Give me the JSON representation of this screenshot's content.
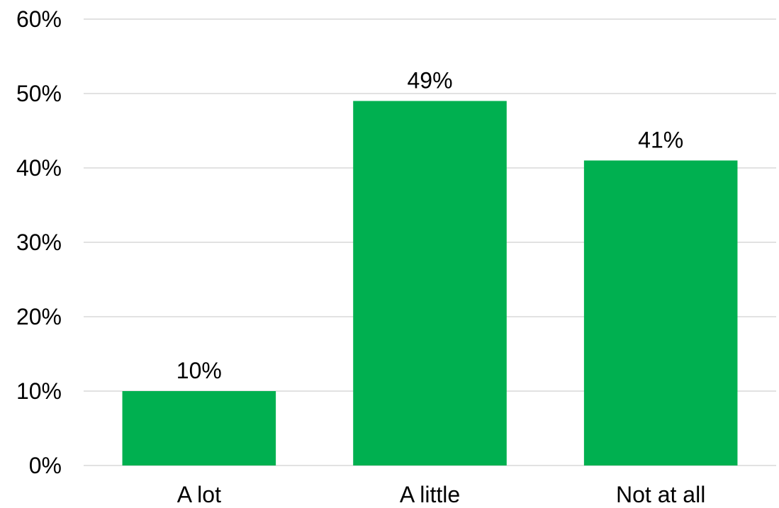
{
  "chart_data": {
    "type": "bar",
    "title": "",
    "xlabel": "",
    "ylabel": "",
    "categories": [
      "A lot",
      "A little",
      "Not at all"
    ],
    "values": [
      10,
      49,
      41
    ],
    "value_labels": [
      "10%",
      "49%",
      "41%"
    ],
    "ylim": [
      0,
      60
    ],
    "yticks": [
      0,
      10,
      20,
      30,
      40,
      50,
      60
    ],
    "ytick_labels": [
      "0%",
      "10%",
      "20%",
      "30%",
      "40%",
      "50%",
      "60%"
    ],
    "grid": true,
    "legend": "none",
    "colors": {
      "bar": "#00B050",
      "grid": "#D9D9D9",
      "text": "#000000"
    }
  }
}
